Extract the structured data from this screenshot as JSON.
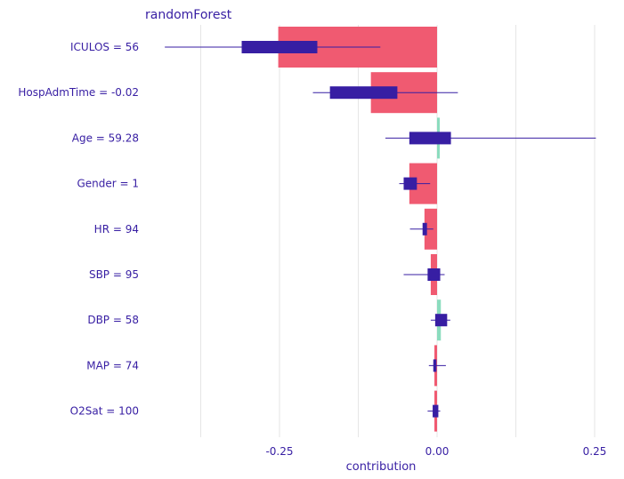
{
  "chart_data": {
    "type": "bar",
    "title": "randomForest",
    "xlabel": "contribution",
    "ylabel": "",
    "xlim": [
      -0.4,
      0.28
    ],
    "xticks": [
      -0.25,
      0.0,
      0.25
    ],
    "xtick_labels": [
      "-0.25",
      "0.00",
      "0.25"
    ],
    "grid": true,
    "categories": [
      "ICULOS = 56",
      "HospAdmTime = -0.02",
      "Age = 59.28",
      "Gender = 1",
      "HR = 94",
      "SBP = 95",
      "DBP = 58",
      "MAP = 74",
      "O2Sat = 100"
    ],
    "values": [
      -0.252,
      -0.105,
      0.0,
      -0.044,
      -0.02,
      -0.01,
      0.006,
      -0.003,
      -0.003
    ],
    "boxplots": [
      {
        "min": -0.432,
        "q1": -0.31,
        "q3": -0.19,
        "max": -0.09
      },
      {
        "min": -0.197,
        "q1": -0.17,
        "q3": -0.063,
        "max": 0.033
      },
      {
        "min": -0.082,
        "q1": -0.044,
        "q3": 0.022,
        "max": 0.252
      },
      {
        "min": -0.06,
        "q1": -0.053,
        "q3": -0.032,
        "max": -0.011
      },
      {
        "min": -0.043,
        "q1": -0.023,
        "q3": -0.016,
        "max": -0.006
      },
      {
        "min": -0.053,
        "q1": -0.015,
        "q3": 0.005,
        "max": 0.012
      },
      {
        "min": -0.01,
        "q1": -0.003,
        "q3": 0.016,
        "max": 0.021
      },
      {
        "min": -0.013,
        "q1": -0.006,
        "q3": -0.001,
        "max": 0.014
      },
      {
        "min": -0.015,
        "q1": -0.007,
        "q3": 0.002,
        "max": 0.005
      }
    ],
    "colors": {
      "negative": "#f05a71",
      "positive": "#8bdcbe",
      "box": "#371ea3",
      "text": "#371ea3"
    }
  }
}
